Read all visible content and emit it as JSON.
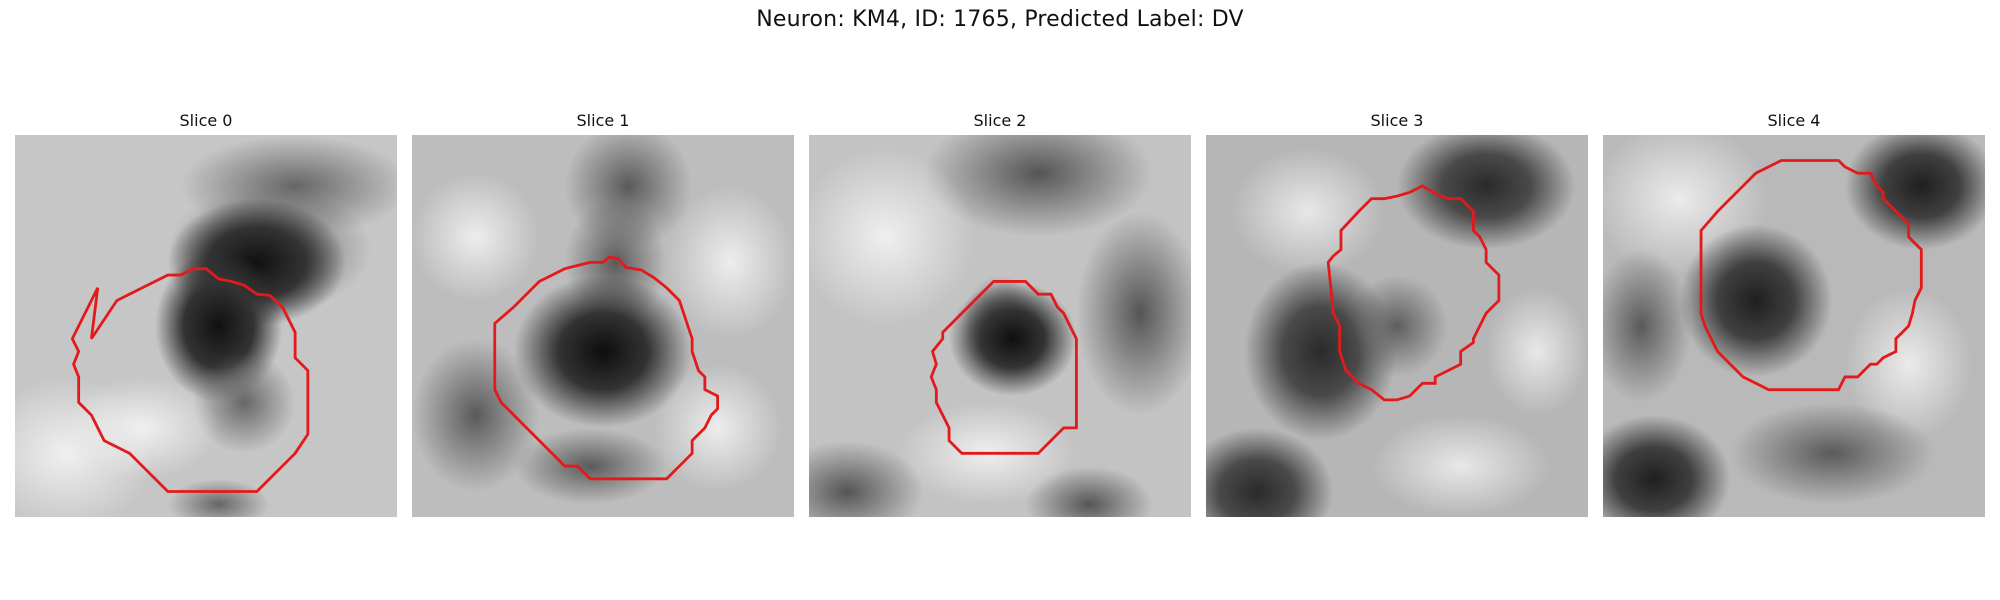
{
  "title": "Neuron: KM4, ID: 1765, Predicted Label: DV",
  "colors": {
    "outline": "#e31a1c",
    "background": "#ffffff"
  },
  "colormap": "grayscale",
  "slices": [
    {
      "label": "Slice 0"
    },
    {
      "label": "Slice 1"
    },
    {
      "label": "Slice 2"
    },
    {
      "label": "Slice 3"
    },
    {
      "label": "Slice 4"
    }
  ]
}
